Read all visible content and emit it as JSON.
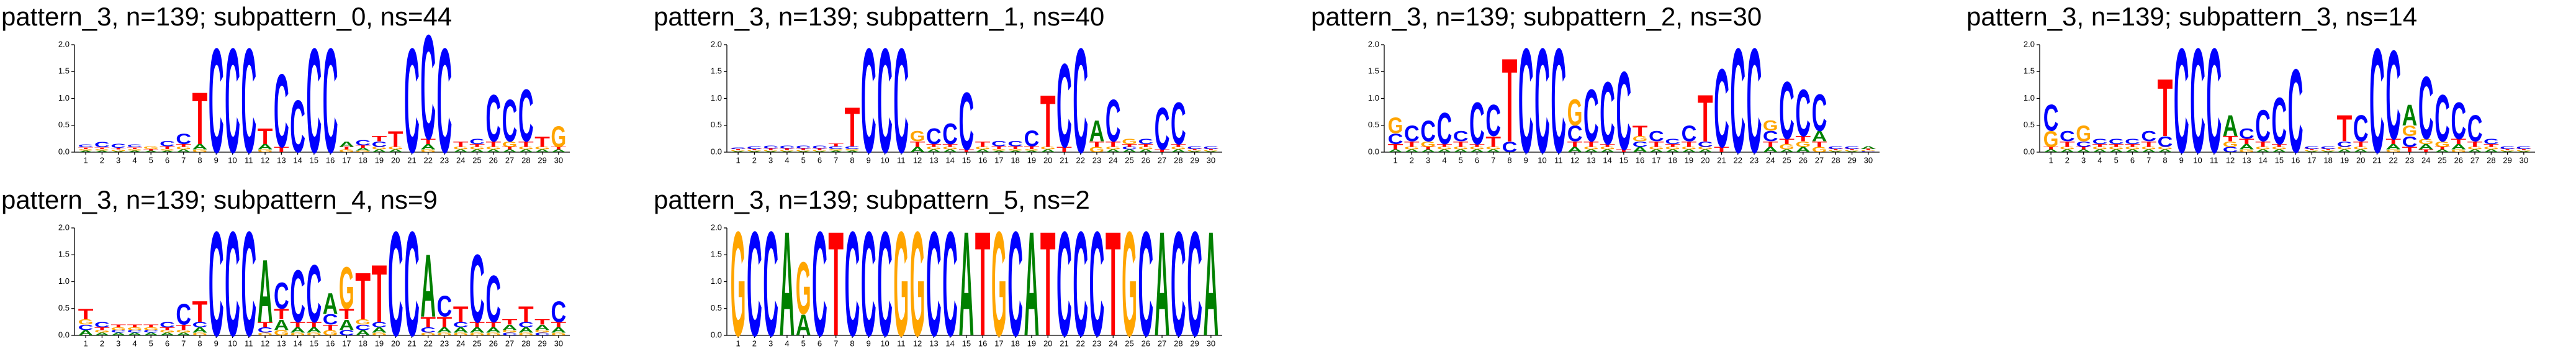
{
  "chart_data": [
    {
      "type": "logo",
      "title": "pattern_3, n=139; subpattern_0, ns=44",
      "categories": [
        1,
        2,
        3,
        4,
        5,
        6,
        7,
        8,
        9,
        10,
        11,
        12,
        13,
        14,
        15,
        16,
        17,
        18,
        19,
        20,
        21,
        22,
        23,
        24,
        25,
        26,
        27,
        28,
        29,
        30
      ],
      "ylim": [
        0,
        2
      ],
      "yticks": [
        {
          "value": 0,
          "label": "0.0"
        },
        0.5,
        {
          "value": 1,
          "label": "1.0"
        },
        1.5,
        {
          "value": 2,
          "label": "2.0"
        }
      ],
      "series": [
        {
          "name": "A",
          "color": "#008000",
          "values": [
            0.03,
            0.03,
            0.02,
            0.03,
            0.03,
            0.03,
            0.05,
            0.1,
            0,
            0,
            0,
            0.1,
            0,
            0,
            0,
            0,
            0.1,
            0.05,
            0.05,
            0.05,
            0,
            0.1,
            0,
            0.05,
            0.05,
            0.05,
            0.05,
            0.05,
            0.05,
            0.05
          ]
        },
        {
          "name": "C",
          "color": "#0000ff",
          "values": [
            0.05,
            0.1,
            0.08,
            0.05,
            0,
            0.1,
            0.2,
            0,
            2,
            2,
            2,
            0,
            1.4,
            1,
            2,
            2,
            0,
            0.1,
            0.1,
            0,
            2,
            2,
            2,
            0,
            0.1,
            0.9,
            0.8,
            1,
            0,
            0
          ]
        },
        {
          "name": "G",
          "color": "#ffa500",
          "values": [
            0.03,
            0.03,
            0.03,
            0.03,
            0.05,
            0.03,
            0.05,
            0.05,
            0,
            0,
            0,
            0.05,
            0,
            0,
            0,
            0,
            0.05,
            0.03,
            0.05,
            0.05,
            0,
            0.05,
            0,
            0.05,
            0.05,
            0.05,
            0.1,
            0.05,
            0.05,
            0.4
          ]
        },
        {
          "name": "T",
          "color": "#ff0000",
          "values": [
            0.03,
            0.03,
            0.03,
            0.03,
            0.03,
            0.05,
            0.05,
            1,
            0,
            0,
            0,
            0.3,
            0.1,
            0,
            0,
            0,
            0.05,
            0.05,
            0.1,
            0.3,
            0,
            0.1,
            0,
            0.1,
            0.05,
            0.1,
            0.05,
            0.1,
            0.2,
            0.05
          ]
        }
      ]
    },
    {
      "type": "logo",
      "title": "pattern_3, n=139; subpattern_1, ns=40",
      "categories": [
        1,
        2,
        3,
        4,
        5,
        6,
        7,
        8,
        9,
        10,
        11,
        12,
        13,
        14,
        15,
        16,
        17,
        18,
        19,
        20,
        21,
        22,
        23,
        24,
        25,
        26,
        27,
        28,
        29,
        30
      ],
      "ylim": [
        0,
        2
      ],
      "yticks": [
        {
          "value": 0,
          "label": "0.0"
        },
        0.5,
        {
          "value": 1,
          "label": "1.0"
        },
        1.5,
        {
          "value": 2,
          "label": "2.0"
        }
      ],
      "series": [
        {
          "name": "A",
          "color": "#008000",
          "values": [
            0.02,
            0.02,
            0.02,
            0.02,
            0.02,
            0.02,
            0.03,
            0.03,
            0,
            0,
            0,
            0.1,
            0.05,
            0.05,
            0,
            0.05,
            0.03,
            0.03,
            0.03,
            0.05,
            0,
            0,
            0.4,
            0.05,
            0.05,
            0.05,
            0,
            0.05,
            0.02,
            0.02
          ]
        },
        {
          "name": "C",
          "color": "#0000ff",
          "values": [
            0.03,
            0.05,
            0.05,
            0.05,
            0.05,
            0.05,
            0.05,
            0.05,
            2,
            2,
            2,
            0,
            0.3,
            0.4,
            1.1,
            0,
            0.1,
            0.1,
            0.3,
            0,
            1.6,
            2,
            0,
            0.8,
            0.05,
            0.1,
            0.8,
            0.8,
            0.05,
            0.05
          ]
        },
        {
          "name": "G",
          "color": "#ffa500",
          "values": [
            0.02,
            0.02,
            0.02,
            0.02,
            0.02,
            0.02,
            0.03,
            0.03,
            0,
            0,
            0,
            0.2,
            0.05,
            0.05,
            0,
            0.05,
            0.03,
            0.03,
            0.03,
            0.05,
            0,
            0,
            0.1,
            0.05,
            0.1,
            0.05,
            0,
            0.05,
            0.02,
            0.02
          ]
        },
        {
          "name": "T",
          "color": "#ff0000",
          "values": [
            0.02,
            0.02,
            0.03,
            0.03,
            0.03,
            0.03,
            0.05,
            0.75,
            0,
            0,
            0,
            0.1,
            0.05,
            0.05,
            0.05,
            0.1,
            0.05,
            0.05,
            0.05,
            1,
            0.1,
            0,
            0.1,
            0.1,
            0.05,
            0.05,
            0.05,
            0.05,
            0.02,
            0.02
          ]
        }
      ]
    },
    {
      "type": "logo",
      "title": "pattern_3, n=139; subpattern_2, ns=30",
      "categories": [
        1,
        2,
        3,
        4,
        5,
        6,
        7,
        8,
        9,
        10,
        11,
        12,
        13,
        14,
        15,
        16,
        17,
        18,
        19,
        20,
        21,
        22,
        23,
        24,
        25,
        26,
        27,
        28,
        29,
        30
      ],
      "ylim": [
        0,
        2
      ],
      "yticks": [
        {
          "value": 0,
          "label": "0.0"
        },
        0.5,
        {
          "value": 1,
          "label": "1.0"
        },
        1.5,
        {
          "value": 2,
          "label": "2.0"
        }
      ],
      "series": [
        {
          "name": "A",
          "color": "#008000",
          "values": [
            0.05,
            0.05,
            0.05,
            0.05,
            0.05,
            0.05,
            0.05,
            0,
            0,
            0,
            0,
            0.1,
            0.05,
            0.05,
            0,
            0.1,
            0.05,
            0.05,
            0.05,
            0.05,
            0,
            0,
            0,
            0.1,
            0.05,
            0.1,
            0.2,
            0.02,
            0.02,
            0.05
          ]
        },
        {
          "name": "C",
          "color": "#0000ff",
          "values": [
            0.2,
            0.3,
            0.4,
            0.6,
            0.2,
            0.8,
            0.6,
            0.2,
            2,
            2,
            2,
            0.3,
            1,
            1.2,
            1.5,
            0.1,
            0.2,
            0.1,
            0.3,
            0.1,
            1.5,
            2,
            2,
            0.2,
            1.1,
            0.9,
            0.7,
            0.05,
            0.05,
            0.02
          ]
        },
        {
          "name": "G",
          "color": "#ffa500",
          "values": [
            0.3,
            0.05,
            0.1,
            0.05,
            0.05,
            0.05,
            0.05,
            0,
            0,
            0,
            0,
            0.5,
            0.05,
            0.05,
            0,
            0.1,
            0.05,
            0.05,
            0.05,
            0.05,
            0,
            0,
            0,
            0.2,
            0.1,
            0.1,
            0.1,
            0.02,
            0.02,
            0.02
          ]
        },
        {
          "name": "T",
          "color": "#ff0000",
          "values": [
            0.1,
            0.1,
            0.05,
            0.05,
            0.1,
            0.05,
            0.2,
            1.6,
            0,
            0,
            0,
            0.1,
            0.1,
            0.05,
            0.05,
            0.2,
            0.1,
            0.05,
            0.1,
            0.9,
            0.1,
            0,
            0,
            0.1,
            0.1,
            0.1,
            0.1,
            0.02,
            0.02,
            0.02
          ]
        }
      ]
    },
    {
      "type": "logo",
      "title": "pattern_3, n=139; subpattern_3, ns=14",
      "categories": [
        1,
        2,
        3,
        4,
        5,
        6,
        7,
        8,
        9,
        10,
        11,
        12,
        13,
        14,
        15,
        16,
        17,
        18,
        19,
        20,
        21,
        22,
        23,
        24,
        25,
        26,
        27,
        28,
        29,
        30
      ],
      "ylim": [
        0,
        2
      ],
      "yticks": [
        {
          "value": 0,
          "label": "0.0"
        },
        0.5,
        {
          "value": 1,
          "label": "1.0"
        },
        1.5,
        {
          "value": 2,
          "label": "2.0"
        }
      ],
      "series": [
        {
          "name": "A",
          "color": "#008000",
          "values": [
            0.05,
            0.05,
            0.05,
            0.05,
            0.05,
            0.05,
            0.05,
            0.05,
            0,
            0,
            0,
            0.4,
            0.1,
            0.05,
            0.05,
            0,
            0.02,
            0.02,
            0.05,
            0.05,
            0,
            0.1,
            0.4,
            0.1,
            0.05,
            0.1,
            0.05,
            0.05,
            0.02,
            0.02
          ]
        },
        {
          "name": "C",
          "color": "#0000ff",
          "values": [
            0.5,
            0.2,
            0.1,
            0.1,
            0.1,
            0.1,
            0.2,
            0.2,
            2,
            2,
            2,
            0.1,
            0.2,
            0.6,
            0.9,
            1.6,
            0.05,
            0.05,
            0.1,
            0.5,
            2,
            1.7,
            0.2,
            1.2,
            0.9,
            0.7,
            0.5,
            0.1,
            0.05,
            0.05
          ]
        },
        {
          "name": "G",
          "color": "#ffa500",
          "values": [
            0.3,
            0.05,
            0.3,
            0.05,
            0.05,
            0.05,
            0.05,
            0.05,
            0,
            0,
            0,
            0.1,
            0.05,
            0.05,
            0.05,
            0,
            0.02,
            0.02,
            0.05,
            0.05,
            0,
            0.05,
            0.2,
            0.1,
            0.1,
            0.05,
            0.05,
            0.05,
            0.02,
            0.02
          ]
        },
        {
          "name": "T",
          "color": "#ff0000",
          "values": [
            0.05,
            0.1,
            0.05,
            0.05,
            0.05,
            0.05,
            0.1,
            1.1,
            0,
            0,
            0,
            0.1,
            0.1,
            0.1,
            0.05,
            0,
            0.02,
            0.02,
            0.5,
            0.1,
            0,
            0.1,
            0.1,
            0.05,
            0.05,
            0.1,
            0.1,
            0.05,
            0.02,
            0.02
          ]
        }
      ]
    },
    {
      "type": "logo",
      "title": "pattern_3, n=139; subpattern_4, ns=9",
      "categories": [
        1,
        2,
        3,
        4,
        5,
        6,
        7,
        8,
        9,
        10,
        11,
        12,
        13,
        14,
        15,
        16,
        17,
        18,
        19,
        20,
        21,
        22,
        23,
        24,
        25,
        26,
        27,
        28,
        29,
        30
      ],
      "ylim": [
        0,
        2
      ],
      "yticks": [
        {
          "value": 0,
          "label": "0.0"
        },
        0.5,
        {
          "value": 1,
          "label": "1.0"
        },
        1.5,
        {
          "value": 2,
          "label": "2.0"
        }
      ],
      "series": [
        {
          "name": "A",
          "color": "#008000",
          "values": [
            0.1,
            0.05,
            0.05,
            0.05,
            0.05,
            0.05,
            0.05,
            0.1,
            0,
            0,
            0,
            1.2,
            0.2,
            0.1,
            0.1,
            0.4,
            0.2,
            0.1,
            0.1,
            0,
            0,
            1.2,
            0.1,
            0.1,
            0.1,
            0.1,
            0.1,
            0.1,
            0.1,
            0.1
          ]
        },
        {
          "name": "C",
          "color": "#0000ff",
          "values": [
            0.1,
            0.1,
            0.05,
            0.05,
            0.05,
            0.1,
            0.4,
            0.1,
            2,
            2,
            2,
            0.1,
            0.5,
            1,
            1.1,
            0.2,
            0.1,
            0.1,
            0.1,
            2,
            2,
            0.1,
            0.4,
            0.1,
            1.3,
            0.9,
            0.05,
            0.1,
            0.05,
            0.4
          ]
        },
        {
          "name": "G",
          "color": "#ffa500",
          "values": [
            0.1,
            0.05,
            0.05,
            0.05,
            0.05,
            0.05,
            0.05,
            0.05,
            0,
            0,
            0,
            0.05,
            0.1,
            0.05,
            0.05,
            0.1,
            0.8,
            0.1,
            0.05,
            0,
            0,
            0.05,
            0.05,
            0.05,
            0.05,
            0.05,
            0.05,
            0.05,
            0.05,
            0.05
          ]
        },
        {
          "name": "T",
          "color": "#ff0000",
          "values": [
            0.2,
            0.05,
            0.05,
            0.05,
            0.05,
            0.05,
            0.1,
            0.4,
            0,
            0,
            0,
            0.1,
            0.2,
            0.1,
            0.1,
            0.1,
            0.2,
            0.9,
            1.1,
            0,
            0,
            0.2,
            0.2,
            0.3,
            0.1,
            0.1,
            0.1,
            0.3,
            0.1,
            0.1
          ]
        }
      ]
    },
    {
      "type": "logo",
      "title": "pattern_3, n=139; subpattern_5, ns=2",
      "categories": [
        1,
        2,
        3,
        4,
        5,
        6,
        7,
        8,
        9,
        10,
        11,
        12,
        13,
        14,
        15,
        16,
        17,
        18,
        19,
        20,
        21,
        22,
        23,
        24,
        25,
        26,
        27,
        28,
        29,
        30
      ],
      "ylim": [
        0,
        2
      ],
      "yticks": [
        {
          "value": 0,
          "label": "0.0"
        },
        0.5,
        {
          "value": 1,
          "label": "1.0"
        },
        1.5,
        {
          "value": 2,
          "label": "2.0"
        }
      ],
      "series": [
        {
          "name": "A",
          "color": "#008000",
          "values": [
            0,
            0,
            0,
            2,
            0.4,
            0,
            0,
            0,
            0,
            0,
            0,
            0,
            0,
            0,
            2,
            0,
            0,
            0,
            2,
            0,
            0,
            0,
            0,
            0,
            0,
            0,
            2,
            0,
            0,
            2
          ]
        },
        {
          "name": "C",
          "color": "#0000ff",
          "values": [
            0,
            2,
            2,
            0,
            0,
            2,
            0,
            2,
            2,
            2,
            0,
            0,
            2,
            2,
            0,
            0,
            0,
            2,
            0,
            0,
            2,
            2,
            2,
            0,
            0,
            2,
            0,
            2,
            2,
            0
          ]
        },
        {
          "name": "G",
          "color": "#ffa500",
          "values": [
            2,
            0,
            0,
            0,
            1,
            0,
            0,
            0,
            0,
            0,
            2,
            2,
            0,
            0,
            0,
            0,
            2,
            0,
            0,
            0,
            0,
            0,
            0,
            0,
            2,
            0,
            0,
            0,
            0,
            0
          ]
        },
        {
          "name": "T",
          "color": "#ff0000",
          "values": [
            0,
            0,
            0,
            0,
            0,
            0,
            2,
            0,
            0,
            0,
            0,
            0,
            0,
            0,
            0,
            2,
            0,
            0,
            0,
            2,
            0,
            0,
            0,
            2,
            0,
            0,
            0,
            0,
            0,
            0
          ]
        }
      ]
    }
  ]
}
